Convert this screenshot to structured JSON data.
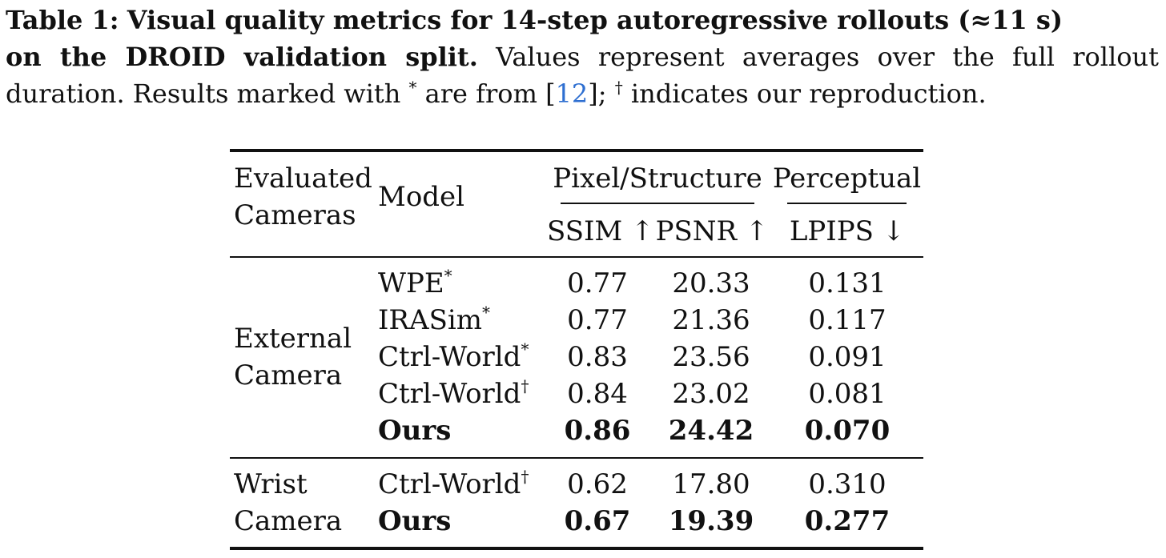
{
  "caption": {
    "label": "Table 1:",
    "bold_line1": "Visual quality metrics for 14-step autoregressive rollouts (≈11 s)",
    "bold_line2": "on the DROID validation split.",
    "text_line2": "Values represent averages over the full rollout",
    "text_line3_a": "duration. Results marked with",
    "mark_star": "*",
    "text_line3_b": "are from [",
    "cite": "12",
    "text_line3_c": "];",
    "mark_dagger": "†",
    "text_line3_d": "indicates our reproduction."
  },
  "table": {
    "headers": {
      "evaluated": "Evaluated",
      "cameras": "Cameras",
      "model": "Model",
      "group_pixel": "Pixel/Structure",
      "group_perceptual": "Perceptual",
      "ssim": "SSIM ↑",
      "psnr": "PSNR ↑",
      "lpips": "LPIPS ↓"
    },
    "groups": [
      {
        "label_line1": "External",
        "label_line2": "Camera",
        "rows": [
          {
            "model": "WPE",
            "mark": "*",
            "ssim": "0.77",
            "psnr": "20.33",
            "lpips": "0.131",
            "bold": false
          },
          {
            "model": "IRASim",
            "mark": "*",
            "ssim": "0.77",
            "psnr": "21.36",
            "lpips": "0.117",
            "bold": false
          },
          {
            "model": "Ctrl-World",
            "mark": "*",
            "ssim": "0.83",
            "psnr": "23.56",
            "lpips": "0.091",
            "bold": false
          },
          {
            "model": "Ctrl-World",
            "mark": "†",
            "ssim": "0.84",
            "psnr": "23.02",
            "lpips": "0.081",
            "bold": false
          },
          {
            "model": "Ours",
            "mark": "",
            "ssim": "0.86",
            "psnr": "24.42",
            "lpips": "0.070",
            "bold": true
          }
        ]
      },
      {
        "label_line1": "Wrist",
        "label_line2": "Camera",
        "rows": [
          {
            "model": "Ctrl-World",
            "mark": "†",
            "ssim": "0.62",
            "psnr": "17.80",
            "lpips": "0.310",
            "bold": false
          },
          {
            "model": "Ours",
            "mark": "",
            "ssim": "0.67",
            "psnr": "19.39",
            "lpips": "0.277",
            "bold": true
          }
        ]
      }
    ]
  }
}
